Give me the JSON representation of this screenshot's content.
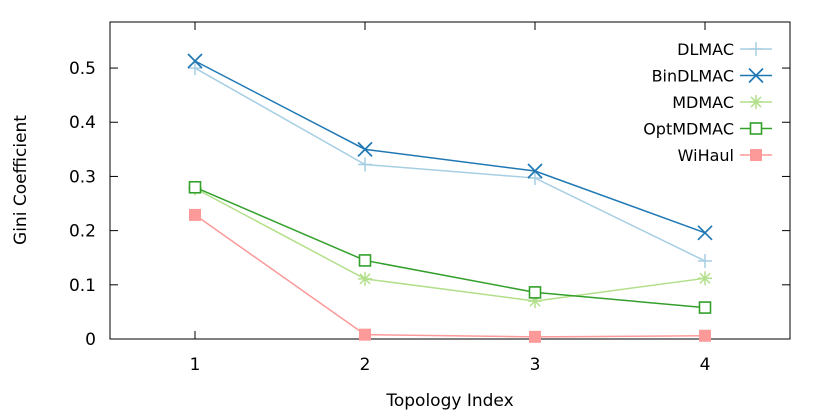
{
  "chart_data": {
    "type": "line",
    "title": "",
    "xlabel": "Topology Index",
    "ylabel": "Gini Coefficient",
    "x": [
      1,
      2,
      3,
      4
    ],
    "xlim": [
      0.5,
      4.5
    ],
    "ylim": [
      0,
      0.585
    ],
    "x_ticks": [
      1,
      2,
      3,
      4
    ],
    "y_ticks": [
      0,
      0.1,
      0.2,
      0.3,
      0.4,
      0.5
    ],
    "y_tick_labels": [
      "0",
      "0.1",
      "0.2",
      "0.3",
      "0.4",
      "0.5"
    ],
    "grid": false,
    "legend_position": "top-right",
    "series": [
      {
        "name": "DLMAC",
        "values": [
          0.5,
          0.322,
          0.297,
          0.144
        ],
        "color": "#a6cee3",
        "marker": "plus"
      },
      {
        "name": "BinDLMAC",
        "values": [
          0.513,
          0.35,
          0.31,
          0.196
        ],
        "color": "#1f78b4",
        "marker": "cross"
      },
      {
        "name": "MDMAC",
        "values": [
          0.278,
          0.111,
          0.07,
          0.112
        ],
        "color": "#b2df8a",
        "marker": "star"
      },
      {
        "name": "OptMDMAC",
        "values": [
          0.28,
          0.145,
          0.086,
          0.058
        ],
        "color": "#33a02c",
        "marker": "open-square"
      },
      {
        "name": "WiHaul",
        "values": [
          0.229,
          0.008,
          0.004,
          0.006
        ],
        "color": "#fb9a99",
        "marker": "filled-square"
      }
    ]
  }
}
